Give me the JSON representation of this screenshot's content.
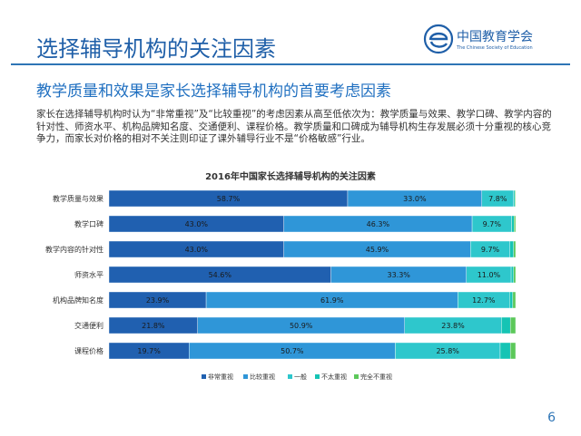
{
  "header": {
    "title": "选择辅导机构的关注因素",
    "logo_cn": "中国教育学会",
    "logo_en": "The Chinese Society of Education"
  },
  "subtitle": "教学质量和效果是家长选择辅导机构的首要考虑因素",
  "description": "家长在选择辅导机构时认为“非常重视”及“比较重视”的考虑因素从高至低依次为：教学质量与效果、教学口碑、教学内容的针对性、师资水平、机构品牌知名度、交通便利、课程价格。教学质量和口碑成为辅导机构生存发展必须十分重视的核心竞争力，而家长对价格的相对不关注则印证了课外辅导行业不是“价格敏感”行业。",
  "page_number": "6",
  "colors": {
    "title": "#1f5fa8",
    "rule": "#2e75b6",
    "series": [
      "#2060b0",
      "#2f96d8",
      "#2ec7cc",
      "#15c4b4",
      "#5cc85a"
    ]
  },
  "chart_data": {
    "type": "bar",
    "orientation": "horizontal",
    "stacked": true,
    "title": "2016年中国家长选择辅导机构的关注因素",
    "categories": [
      "教学质量与效果",
      "教学口碑",
      "教学内容的针对性",
      "师资水平",
      "机构品牌知名度",
      "交通便利",
      "课程价格"
    ],
    "series": [
      {
        "name": "非常重视",
        "values": [
          58.7,
          43.0,
          43.0,
          54.6,
          23.9,
          21.8,
          19.7
        ],
        "labels": [
          "58.7%",
          "43.0%",
          "43.0%",
          "54.6%",
          "23.9%",
          "21.8%",
          "19.7%"
        ]
      },
      {
        "name": "比较重视",
        "values": [
          33.0,
          46.3,
          45.9,
          33.3,
          61.9,
          50.9,
          50.7
        ],
        "labels": [
          "33.0%",
          "46.3%",
          "45.9%",
          "33.3%",
          "61.9%",
          "50.9%",
          "50.7%"
        ]
      },
      {
        "name": "一般",
        "values": [
          7.8,
          9.7,
          9.7,
          11.0,
          12.7,
          23.8,
          25.8
        ],
        "labels": [
          "7.8%",
          "9.7%",
          "9.7%",
          "11.0%",
          "12.7%",
          "23.8%",
          "25.8%"
        ]
      },
      {
        "name": "不太重视",
        "values": [
          0.3,
          0.6,
          0.9,
          0.6,
          0.8,
          2.2,
          2.5
        ],
        "labels": []
      },
      {
        "name": "完全不重视",
        "values": [
          0.2,
          0.4,
          0.5,
          0.5,
          0.7,
          1.3,
          1.3
        ],
        "labels": []
      }
    ],
    "xlim": [
      0,
      100
    ],
    "grid": false,
    "legend": "bottom"
  }
}
